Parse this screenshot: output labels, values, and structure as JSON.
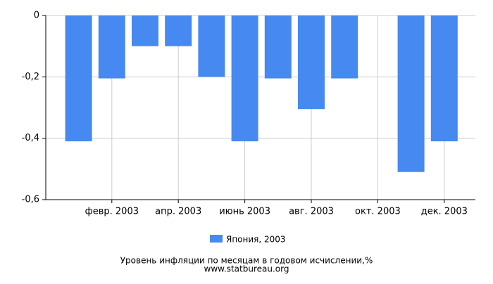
{
  "chart_data": {
    "type": "bar",
    "title": "Уровень инфляции по месяцам в годовом исчислении,%",
    "subtitle": "www.statbureau.org",
    "categories": [
      null,
      "февр. 2003",
      null,
      "апр. 2003",
      null,
      "июнь 2003",
      null,
      "авг. 2003",
      null,
      "окт. 2003",
      null,
      "дек. 2003"
    ],
    "series": [
      {
        "name": "Япония, 2003",
        "color": "#4689f0",
        "values": [
          -0.41,
          -0.205,
          -0.1,
          -0.1,
          -0.2,
          -0.41,
          -0.205,
          -0.305,
          -0.205,
          0,
          -0.51,
          -0.41
        ]
      }
    ],
    "ylim": [
      -0.6,
      0
    ],
    "yticks": [
      0,
      {
        "value": -0.2,
        "label": "-0,2"
      },
      {
        "value": -0.4,
        "label": "-0,4"
      },
      {
        "value": -0.6,
        "label": "-0,6"
      }
    ],
    "grid": true
  }
}
